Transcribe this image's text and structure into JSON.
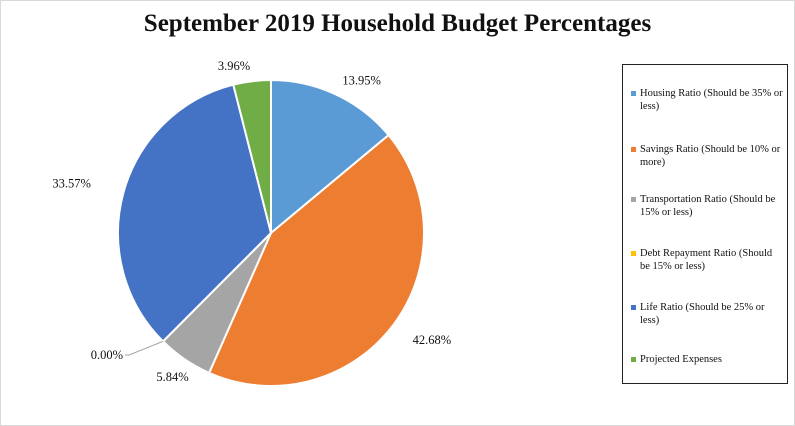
{
  "chart_data": {
    "type": "pie",
    "title": "September 2019 Household Budget Percentages",
    "legend_position": "right",
    "categories": [
      "Housing Ratio (Should be 35% or less)",
      "Savings Ratio (Should be 10% or more)",
      "Transportation Ratio (Should be 15% or less)",
      "Debt Repayment Ratio (Should be 15% or less)",
      "Life Ratio (Should be 25% or less)",
      "Projected Expenses"
    ],
    "values": [
      13.95,
      42.68,
      5.84,
      0.0,
      33.57,
      3.96
    ],
    "data_labels": [
      "13.95%",
      "42.68%",
      "5.84%",
      "0.00%",
      "33.57%",
      "3.96%"
    ],
    "colors": [
      "#5b9bd5",
      "#ed7d31",
      "#a5a5a5",
      "#ffc000",
      "#4472c4",
      "#70ad47"
    ]
  }
}
